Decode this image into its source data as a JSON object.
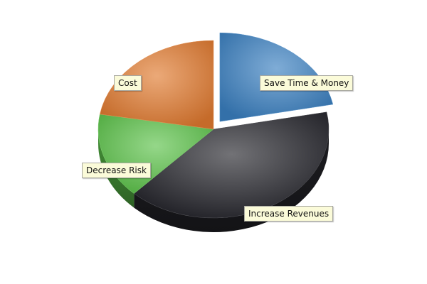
{
  "chart_data": {
    "type": "pie",
    "title": "",
    "three_d": true,
    "labels": [
      "Save Time & Money",
      "Increase Revenues",
      "Decrease Risk",
      "Cost"
    ],
    "values": [
      21.9,
      40.2,
      15.6,
      22.3
    ],
    "exploded": [
      true,
      false,
      false,
      false
    ],
    "colors": [
      "#3a7fc0",
      "#26262c",
      "#5cc24a",
      "#e07a30"
    ]
  }
}
